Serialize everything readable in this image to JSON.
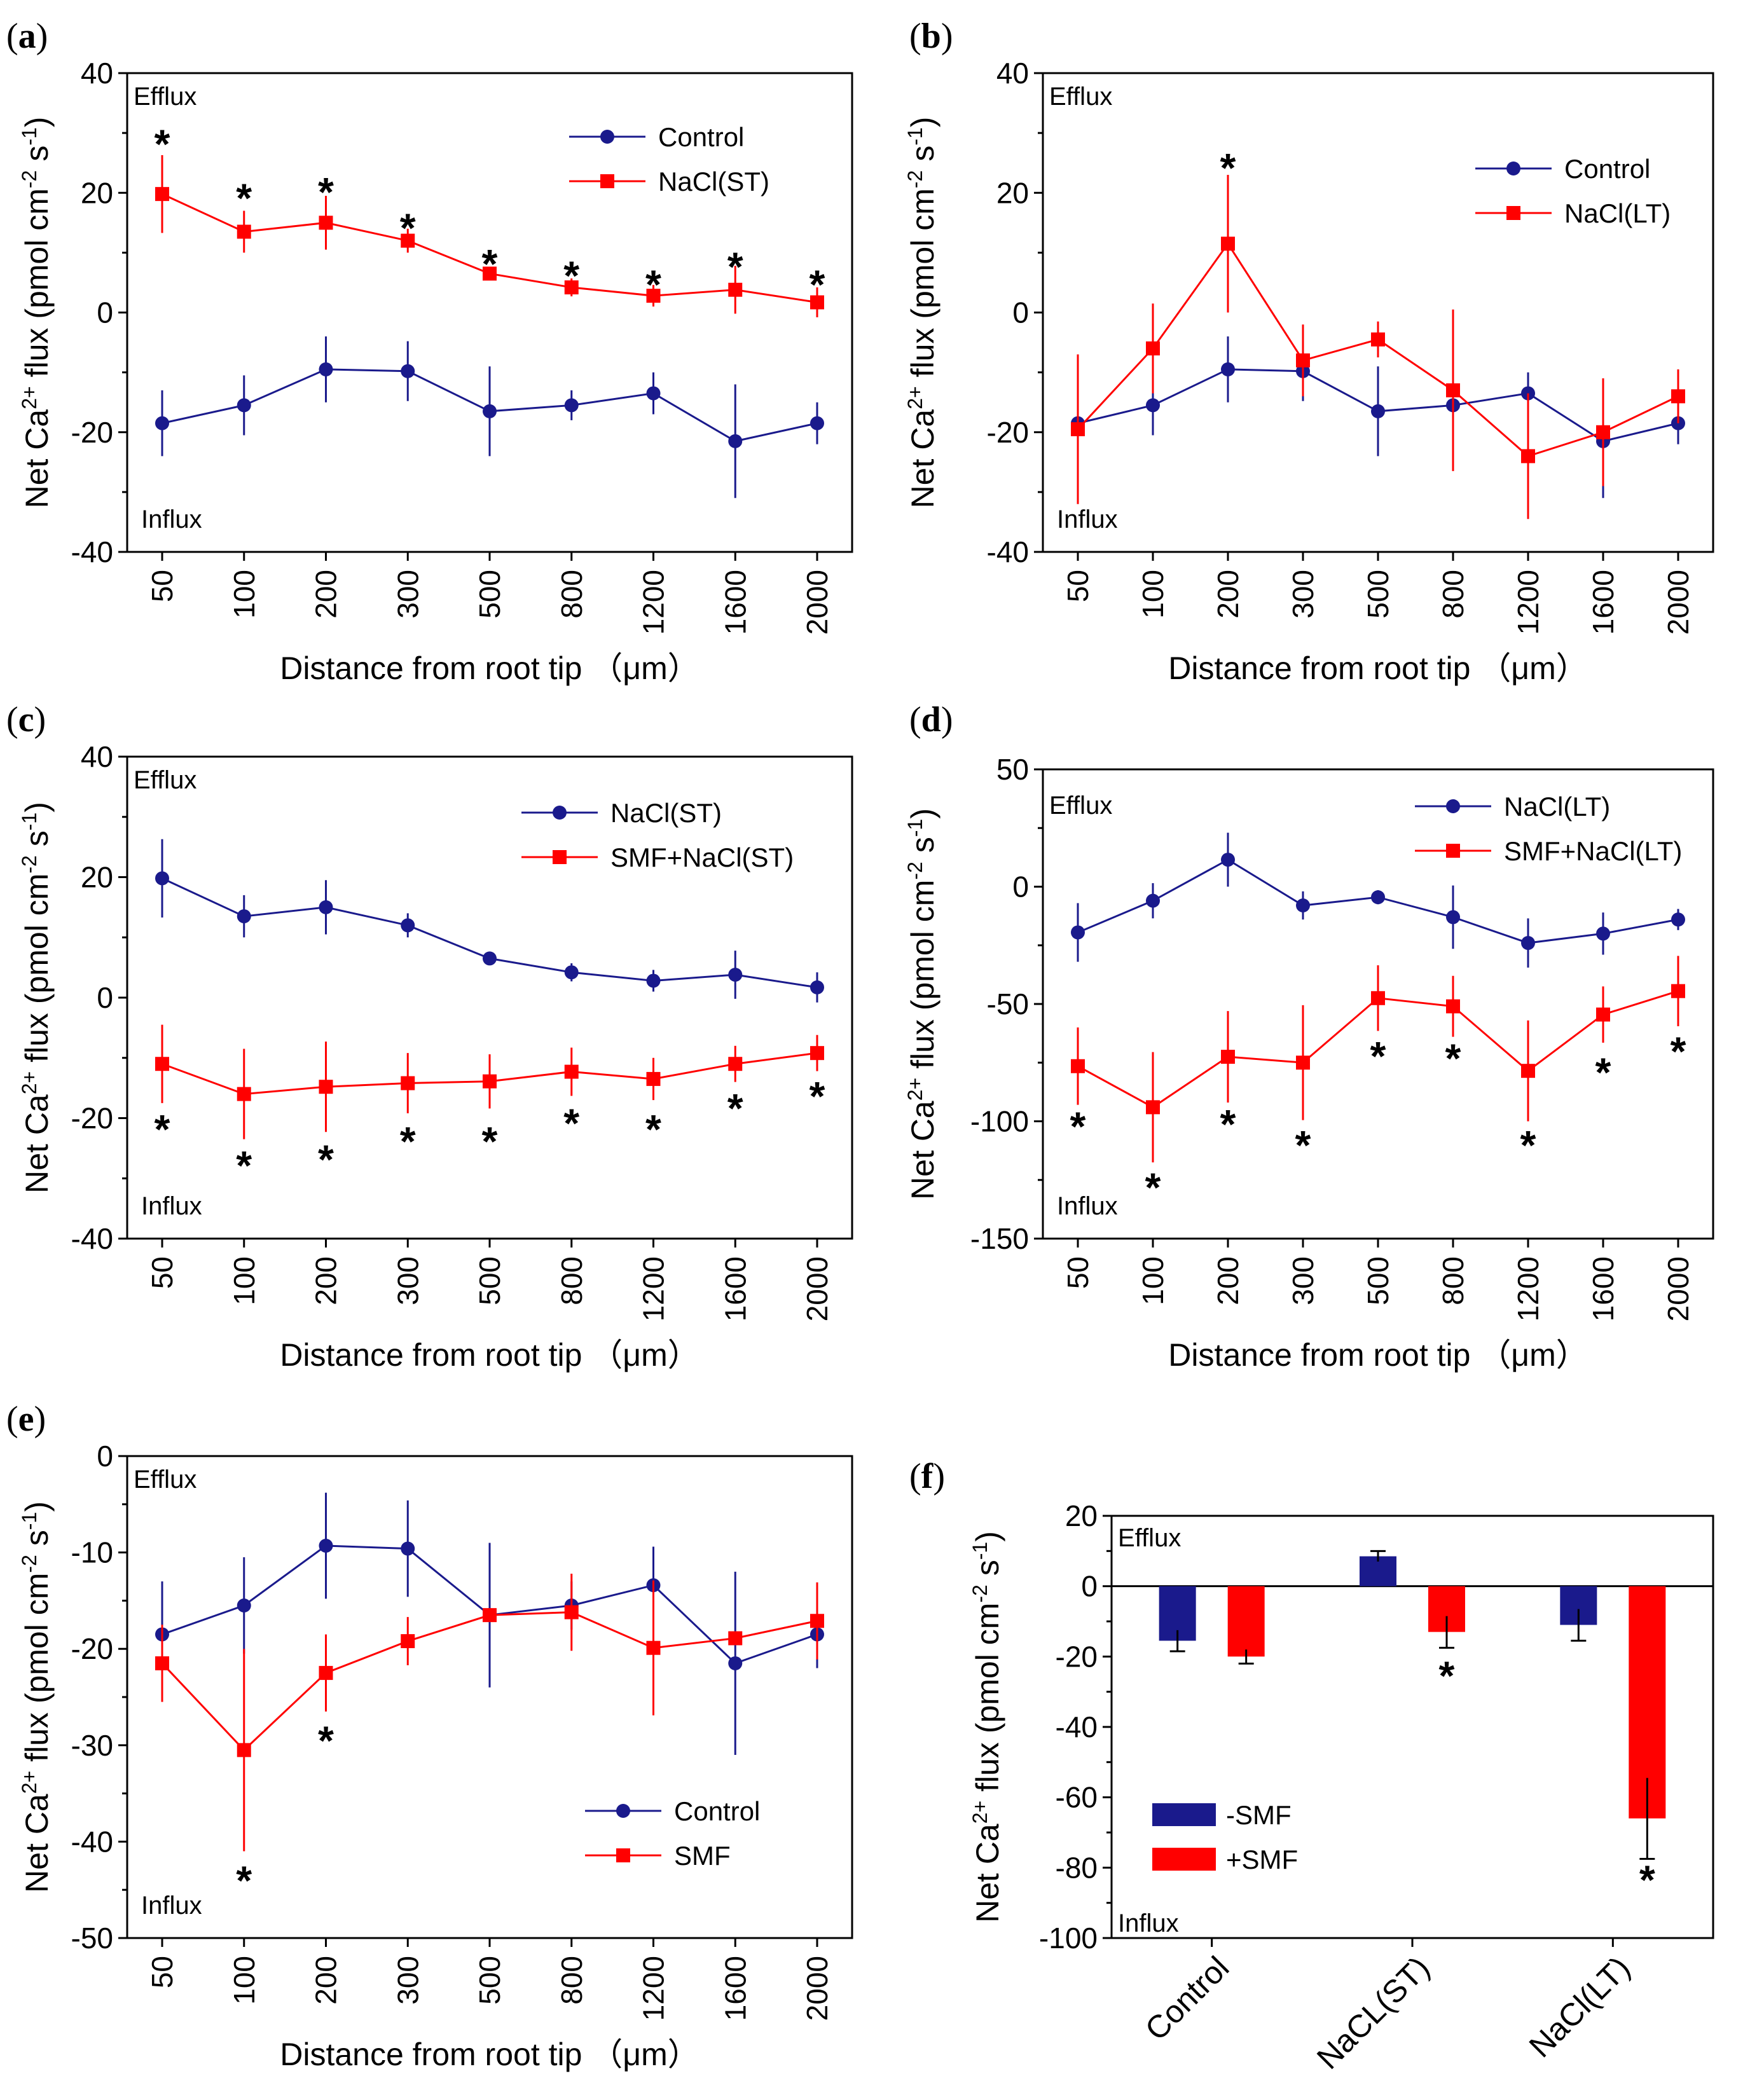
{
  "figure": {
    "x_axis_label": "Distance from root tip （μm）",
    "y_axis_label_prefix": "Net Ca",
    "y_axis_label_sup1": "2+",
    "y_axis_label_mid": " flux (pmol cm",
    "y_axis_label_sup2": "-2",
    "y_axis_label_mid2": " s",
    "y_axis_label_sup3": "-1",
    "y_axis_label_end": ")",
    "efflux_label": "Efflux",
    "influx_label": "Influx",
    "colors": {
      "blue": "#1a1a8c",
      "red": "#ff0000"
    }
  },
  "chart_data": [
    {
      "id": "a",
      "label": "a",
      "type": "line",
      "categories": [
        "50",
        "100",
        "200",
        "300",
        "500",
        "800",
        "1200",
        "1600",
        "2000"
      ],
      "ylim": [
        -40,
        40
      ],
      "yticks": [
        40,
        20,
        0,
        -20,
        -40
      ],
      "series": [
        {
          "name": "Control",
          "color": "#1a1a8c",
          "marker": "circle",
          "values": [
            -18.5,
            -15.5,
            -9.5,
            -9.8,
            -16.5,
            -15.5,
            -13.5,
            -21.5,
            -18.5
          ],
          "errors": [
            5.5,
            5,
            5.5,
            5,
            7.5,
            2.5,
            3.5,
            9.5,
            3.5
          ]
        },
        {
          "name": "NaCl(ST)",
          "color": "#ff0000",
          "marker": "square",
          "values": [
            19.8,
            13.5,
            15,
            12,
            6.5,
            4.2,
            2.8,
            3.8,
            1.7
          ],
          "errors": [
            6.5,
            3.5,
            4.5,
            2,
            1,
            1.5,
            1.8,
            4,
            2.5
          ]
        }
      ],
      "stars": [
        {
          "index": 0,
          "value": 29
        },
        {
          "index": 1,
          "value": 20
        },
        {
          "index": 2,
          "value": 21
        },
        {
          "index": 3,
          "value": 15
        },
        {
          "index": 4,
          "value": 9
        },
        {
          "index": 5,
          "value": 7
        },
        {
          "index": 6,
          "value": 5.5
        },
        {
          "index": 7,
          "value": 8.5
        },
        {
          "index": 8,
          "value": 5.5
        }
      ],
      "legend": "top-right"
    },
    {
      "id": "b",
      "label": "b",
      "type": "line",
      "categories": [
        "50",
        "100",
        "200",
        "300",
        "500",
        "800",
        "1200",
        "1600",
        "2000"
      ],
      "ylim": [
        -40,
        40
      ],
      "yticks": [
        40,
        20,
        0,
        -20,
        -40
      ],
      "series": [
        {
          "name": "Control",
          "color": "#1a1a8c",
          "marker": "circle",
          "values": [
            -18.5,
            -15.5,
            -9.5,
            -9.8,
            -16.5,
            -15.5,
            -13.5,
            -21.5,
            -18.5
          ],
          "errors": [
            5.5,
            5,
            5.5,
            5,
            7.5,
            2.5,
            3.5,
            9.5,
            3.5
          ]
        },
        {
          "name": "NaCl(LT)",
          "color": "#ff0000",
          "marker": "square",
          "values": [
            -19.5,
            -6,
            11.5,
            -8,
            -4.5,
            -13,
            -24,
            -20,
            -14
          ],
          "errors": [
            12.5,
            7.5,
            11.5,
            6,
            3,
            13.5,
            10.5,
            9,
            4.5
          ]
        }
      ],
      "stars": [
        {
          "index": 2,
          "value": 25
        }
      ],
      "legend": "top-right"
    },
    {
      "id": "c",
      "label": "c",
      "type": "line",
      "categories": [
        "50",
        "100",
        "200",
        "300",
        "500",
        "800",
        "1200",
        "1600",
        "2000"
      ],
      "ylim": [
        -40,
        40
      ],
      "yticks": [
        40,
        20,
        0,
        -20,
        -40
      ],
      "series": [
        {
          "name": "NaCl(ST)",
          "color": "#1a1a8c",
          "marker": "circle",
          "values": [
            19.8,
            13.5,
            15,
            12,
            6.5,
            4.2,
            2.8,
            3.8,
            1.7
          ],
          "errors": [
            6.5,
            3.5,
            4.5,
            2,
            1,
            1.5,
            1.8,
            4,
            2.5
          ]
        },
        {
          "name": "SMF+NaCl(ST)",
          "color": "#ff0000",
          "marker": "square",
          "values": [
            -11,
            -16,
            -14.8,
            -14.2,
            -13.9,
            -12.3,
            -13.5,
            -11,
            -9.2
          ],
          "errors": [
            6.5,
            7.5,
            7.5,
            5,
            4.5,
            4,
            3.5,
            3,
            3
          ]
        }
      ],
      "stars": [
        {
          "index": 0,
          "value": -21
        },
        {
          "index": 1,
          "value": -27
        },
        {
          "index": 2,
          "value": -26
        },
        {
          "index": 3,
          "value": -23
        },
        {
          "index": 4,
          "value": -23
        },
        {
          "index": 5,
          "value": -20
        },
        {
          "index": 6,
          "value": -21
        },
        {
          "index": 7,
          "value": -17.5
        },
        {
          "index": 8,
          "value": -15.5
        }
      ],
      "legend": "top-right"
    },
    {
      "id": "d",
      "label": "d",
      "type": "line",
      "categories": [
        "50",
        "100",
        "200",
        "300",
        "500",
        "800",
        "1200",
        "1600",
        "2000"
      ],
      "ylim": [
        -150,
        50
      ],
      "yticks": [
        50,
        0,
        -50,
        -100,
        -150
      ],
      "series": [
        {
          "name": "NaCl(LT)",
          "color": "#1a1a8c",
          "marker": "circle",
          "values": [
            -19.5,
            -6,
            11.5,
            -8,
            -4.5,
            -13,
            -24,
            -20,
            -14
          ],
          "errors": [
            12.5,
            7.5,
            11.5,
            6,
            3,
            13.5,
            10.5,
            9,
            4.5
          ]
        },
        {
          "name": "SMF+NaCl(LT)",
          "color": "#ff0000",
          "marker": "square",
          "values": [
            -76.5,
            -94,
            -72.5,
            -75,
            -47.5,
            -51,
            -78.5,
            -54.5,
            -44.5
          ],
          "errors": [
            16.5,
            23.5,
            19.5,
            24.5,
            14,
            13,
            21.5,
            12,
            15
          ]
        }
      ],
      "stars": [
        {
          "index": 0,
          "value": -100
        },
        {
          "index": 1,
          "value": -126
        },
        {
          "index": 2,
          "value": -99
        },
        {
          "index": 3,
          "value": -108
        },
        {
          "index": 4,
          "value": -70
        },
        {
          "index": 5,
          "value": -71
        },
        {
          "index": 6,
          "value": -108
        },
        {
          "index": 7,
          "value": -77
        },
        {
          "index": 8,
          "value": -68
        }
      ],
      "legend": "top-right"
    },
    {
      "id": "e",
      "label": "e",
      "type": "line",
      "categories": [
        "50",
        "100",
        "200",
        "300",
        "500",
        "800",
        "1200",
        "1600",
        "2000"
      ],
      "ylim": [
        -50,
        0
      ],
      "yticks": [
        0,
        -10,
        -20,
        -30,
        -40,
        -50
      ],
      "series": [
        {
          "name": "Control",
          "color": "#1a1a8c",
          "marker": "circle",
          "values": [
            -18.5,
            -15.5,
            -9.3,
            -9.6,
            -16.5,
            -15.5,
            -13.4,
            -21.5,
            -18.5
          ],
          "errors": [
            5.5,
            5,
            5.5,
            5,
            7.5,
            2.5,
            4,
            9.5,
            3.5
          ]
        },
        {
          "name": "SMF",
          "color": "#ff0000",
          "marker": "square",
          "values": [
            -21.5,
            -30.5,
            -22.5,
            -19.2,
            -16.5,
            -16.2,
            -19.9,
            -18.9,
            -17.1
          ],
          "errors": [
            4,
            10.5,
            4,
            2.5,
            0,
            4,
            7,
            0,
            4
          ]
        }
      ],
      "stars": [
        {
          "index": 1,
          "value": -43.5
        },
        {
          "index": 2,
          "value": -29
        }
      ],
      "legend": "bottom-right"
    },
    {
      "id": "f",
      "label": "f",
      "type": "bar",
      "categories": [
        "Control",
        "NaCL(ST)",
        "NaCl(LT)"
      ],
      "ylim": [
        -100,
        20
      ],
      "yticks": [
        20,
        0,
        -20,
        -40,
        -60,
        -80,
        -100
      ],
      "series": [
        {
          "name": "-SMF",
          "color": "#1a1a8c",
          "values": [
            -15.5,
            8.5,
            -11
          ],
          "errors": [
            3,
            1.5,
            4.5
          ]
        },
        {
          "name": "+SMF",
          "color": "#ff0000",
          "values": [
            -20,
            -13,
            -66
          ],
          "errors": [
            2,
            4.5,
            11.5
          ]
        }
      ],
      "stars": [
        {
          "category": 1,
          "series": 1,
          "value": -24
        },
        {
          "category": 2,
          "series": 1,
          "value": -82
        }
      ],
      "legend": "bottom-left"
    }
  ]
}
